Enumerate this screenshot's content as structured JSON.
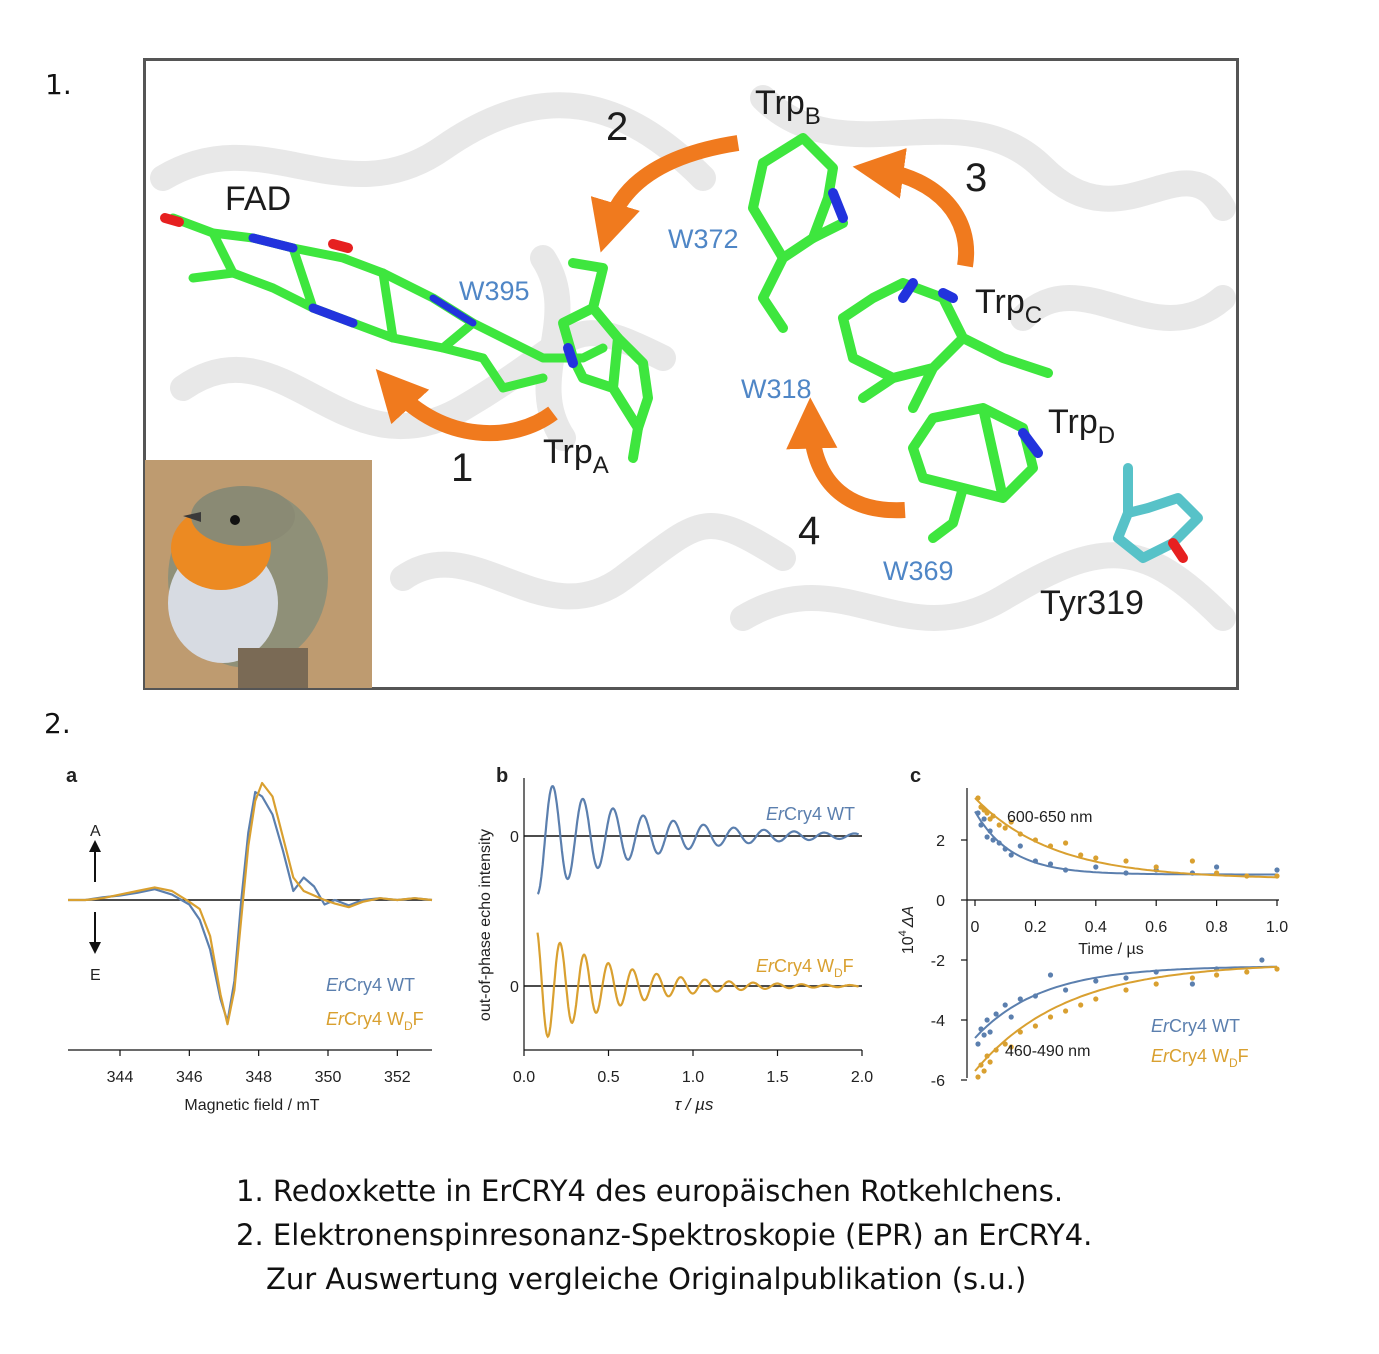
{
  "section1_label": "1.",
  "section2_label": "2.",
  "figure1": {
    "labels": {
      "fad": "FAD",
      "trp_a": "Trp",
      "trp_a_sub": "A",
      "trp_b": "Trp",
      "trp_b_sub": "B",
      "trp_c": "Trp",
      "trp_c_sub": "C",
      "trp_d": "Trp",
      "trp_d_sub": "D",
      "w395": "W395",
      "w372": "W372",
      "w318": "W318",
      "w369": "W369",
      "tyr": "Tyr319",
      "step1": "1",
      "step2": "2",
      "step3": "3",
      "step4": "4"
    },
    "colors": {
      "carbon": "#3ee63e",
      "nitrogen": "#2233dd",
      "oxygen": "#e62020",
      "tyrosine": "#57c2c8",
      "arrow": "#f07a1e",
      "residue_label": "#4f86c6"
    }
  },
  "panel_a": {
    "letter": "a",
    "absorption": "A",
    "emission": "E",
    "xlabel": "Magnetic field / mT",
    "xticks": [
      "344",
      "346",
      "348",
      "350",
      "352"
    ],
    "legend": [
      {
        "italic": "Er",
        "text": "Cry4 WT",
        "sub": "",
        "tail": ""
      },
      {
        "italic": "Er",
        "text": "Cry4 W",
        "sub": "D",
        "tail": "F"
      }
    ]
  },
  "panel_b": {
    "letter": "b",
    "ylabel": "out-of-phase echo intensity",
    "xlabel": "τ / µs",
    "xticks": [
      "0.0",
      "0.5",
      "1.0",
      "1.5",
      "2.0"
    ],
    "zero_top": "0",
    "zero_bottom": "0",
    "legend": [
      {
        "italic": "Er",
        "text": "Cry4 WT",
        "sub": "",
        "tail": ""
      },
      {
        "italic": "Er",
        "text": "Cry4 W",
        "sub": "D",
        "tail": "F"
      }
    ]
  },
  "panel_c": {
    "letter": "c",
    "ylabel": "10",
    "ylabel_sup": "4",
    "ylabel_delta": "ΔA",
    "xlabel": "Time / µs",
    "xticks": [
      "0",
      "0.2",
      "0.4",
      "0.6",
      "0.8",
      "1.0"
    ],
    "yticks": [
      "2",
      "0",
      "-2",
      "-4",
      "-6"
    ],
    "range_top": "600-650 nm",
    "range_bottom": "460-490 nm",
    "legend": [
      {
        "italic": "Er",
        "text": "Cry4 WT",
        "sub": "",
        "tail": ""
      },
      {
        "italic": "Er",
        "text": "Cry4 W",
        "sub": "D",
        "tail": "F"
      }
    ]
  },
  "chart_data": [
    {
      "type": "line",
      "panel": "a",
      "xlabel": "Magnetic field / mT",
      "ylabel": "",
      "xlim": [
        342.5,
        353
      ],
      "series": [
        {
          "name": "ErCry4 WT",
          "color": "#5b7fae",
          "x": [
            342.5,
            343,
            343.5,
            344,
            344.5,
            345,
            345.5,
            346,
            346.3,
            346.6,
            346.9,
            347.1,
            347.3,
            347.5,
            347.7,
            347.9,
            348.1,
            348.4,
            348.7,
            349,
            349.3,
            349.6,
            349.9,
            350.2,
            350.6,
            351,
            351.5,
            352,
            352.5,
            353
          ],
          "y": [
            0,
            0,
            0.03,
            0.05,
            0.08,
            0.12,
            0.06,
            -0.05,
            -0.22,
            -0.55,
            -1.1,
            -1.35,
            -0.9,
            0,
            0.75,
            1.2,
            1.15,
            0.95,
            0.55,
            0.1,
            0.25,
            0.15,
            -0.05,
            0,
            -0.06,
            0,
            0.02,
            0,
            0.02,
            0
          ]
        },
        {
          "name": "ErCry4 WDF",
          "color": "#d9a030",
          "x": [
            342.5,
            343,
            343.5,
            344,
            344.5,
            345,
            345.5,
            346,
            346.3,
            346.6,
            346.9,
            347.1,
            347.3,
            347.5,
            347.7,
            347.9,
            348.1,
            348.4,
            348.7,
            349,
            349.3,
            349.6,
            349.9,
            350.2,
            350.6,
            351,
            351.5,
            352,
            352.5,
            353
          ],
          "y": [
            0,
            0,
            0.02,
            0.06,
            0.1,
            0.14,
            0.1,
            -0.02,
            -0.1,
            -0.4,
            -1.05,
            -1.38,
            -1.0,
            -0.2,
            0.6,
            1.1,
            1.3,
            1.15,
            0.7,
            0.25,
            0.1,
            0.05,
            0,
            -0.04,
            -0.08,
            -0.02,
            0.02,
            0,
            0.02,
            0
          ]
        }
      ]
    },
    {
      "type": "line",
      "panel": "b",
      "xlabel": "τ / µs",
      "ylabel": "out-of-phase echo intensity",
      "xlim": [
        0,
        2.0
      ],
      "series": [
        {
          "name": "ErCry4 WT",
          "color": "#5b7fae",
          "amplitude": 1.0,
          "frequency": 5.6,
          "decay": 0.6,
          "offset_panel": "top"
        },
        {
          "name": "ErCry4 WDF",
          "color": "#d9a030",
          "amplitude": 1.0,
          "frequency": 7.0,
          "decay": 0.45,
          "offset_panel": "bottom"
        }
      ]
    },
    {
      "type": "scatter",
      "panel": "c",
      "xlabel": "Time / µs",
      "ylabel": "10^4 ΔA",
      "xlim": [
        0,
        1.0
      ],
      "ylim": [
        -6,
        3.5
      ],
      "series": [
        {
          "name": "ErCry4 WT 600-650 nm",
          "color": "#5b7fae",
          "fit": {
            "a": 2.1,
            "tau": 0.12,
            "c": 0.85
          },
          "x": [
            0.01,
            0.02,
            0.03,
            0.04,
            0.05,
            0.06,
            0.08,
            0.1,
            0.12,
            0.15,
            0.2,
            0.25,
            0.3,
            0.4,
            0.5,
            0.6,
            0.72,
            0.8,
            1.0
          ],
          "y": [
            2.9,
            2.5,
            2.7,
            2.1,
            2.3,
            2.0,
            1.9,
            1.7,
            1.5,
            1.8,
            1.3,
            1.2,
            1.0,
            1.1,
            0.9,
            1.0,
            0.9,
            1.1,
            1.0
          ]
        },
        {
          "name": "ErCry4 WDF 600-650 nm",
          "color": "#d9a030",
          "fit": {
            "a": 2.7,
            "tau": 0.26,
            "c": 0.7
          },
          "x": [
            0.01,
            0.02,
            0.03,
            0.04,
            0.05,
            0.06,
            0.08,
            0.1,
            0.12,
            0.15,
            0.2,
            0.25,
            0.3,
            0.35,
            0.4,
            0.5,
            0.6,
            0.72,
            0.8,
            0.9,
            1.0
          ],
          "y": [
            3.4,
            3.1,
            3.0,
            2.9,
            2.7,
            2.8,
            2.5,
            2.4,
            2.6,
            2.2,
            2.0,
            1.8,
            1.9,
            1.5,
            1.4,
            1.3,
            1.1,
            1.3,
            0.9,
            0.8,
            0.8
          ]
        },
        {
          "name": "ErCry4 WT 460-490 nm",
          "color": "#5b7fae",
          "fit": {
            "a": -2.4,
            "tau": 0.22,
            "c": -2.2
          },
          "x": [
            0.01,
            0.02,
            0.03,
            0.04,
            0.05,
            0.07,
            0.1,
            0.12,
            0.15,
            0.2,
            0.25,
            0.3,
            0.4,
            0.5,
            0.6,
            0.72,
            0.8,
            0.95
          ],
          "y": [
            -4.8,
            -4.3,
            -4.5,
            -4.0,
            -4.4,
            -3.8,
            -3.5,
            -3.9,
            -3.3,
            -3.2,
            -2.5,
            -3.0,
            -2.7,
            -2.6,
            -2.4,
            -2.8,
            -2.3,
            -2.0
          ]
        },
        {
          "name": "ErCry4 WDF 460-490 nm",
          "color": "#d9a030",
          "fit": {
            "a": -3.6,
            "tau": 0.3,
            "c": -2.1
          },
          "x": [
            0.01,
            0.02,
            0.03,
            0.04,
            0.05,
            0.07,
            0.1,
            0.12,
            0.15,
            0.2,
            0.25,
            0.3,
            0.35,
            0.4,
            0.5,
            0.6,
            0.72,
            0.8,
            0.9,
            1.0
          ],
          "y": [
            -5.9,
            -5.5,
            -5.7,
            -5.2,
            -5.4,
            -5.0,
            -4.8,
            -4.9,
            -4.4,
            -4.2,
            -3.9,
            -3.7,
            -3.5,
            -3.3,
            -3.0,
            -2.8,
            -2.6,
            -2.5,
            -2.4,
            -2.3
          ]
        }
      ]
    }
  ],
  "captions": [
    "1. Redoxkette in ErCRY4 des europäischen Rotkehlchens.",
    "2. Elektronenspinresonanz-Spektroskopie (EPR) an ErCRY4.",
    "Zur Auswertung vergleiche Originalpublikation (s.u.)"
  ]
}
